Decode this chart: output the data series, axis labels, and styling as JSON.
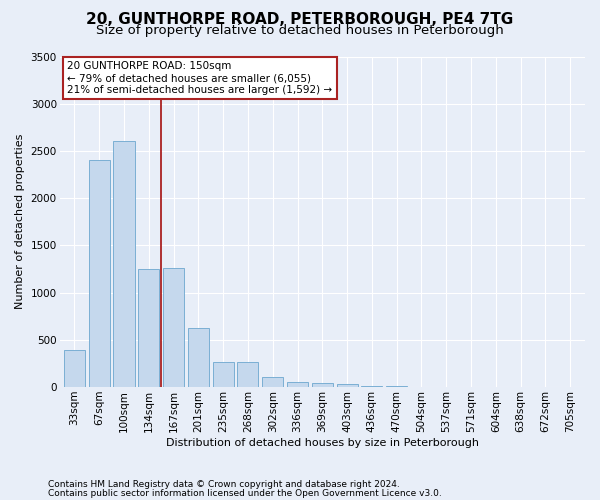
{
  "title": "20, GUNTHORPE ROAD, PETERBOROUGH, PE4 7TG",
  "subtitle": "Size of property relative to detached houses in Peterborough",
  "xlabel": "Distribution of detached houses by size in Peterborough",
  "ylabel": "Number of detached properties",
  "footer_line1": "Contains HM Land Registry data © Crown copyright and database right 2024.",
  "footer_line2": "Contains public sector information licensed under the Open Government Licence v3.0.",
  "categories": [
    "33sqm",
    "67sqm",
    "100sqm",
    "134sqm",
    "167sqm",
    "201sqm",
    "235sqm",
    "268sqm",
    "302sqm",
    "336sqm",
    "369sqm",
    "403sqm",
    "436sqm",
    "470sqm",
    "504sqm",
    "537sqm",
    "571sqm",
    "604sqm",
    "638sqm",
    "672sqm",
    "705sqm"
  ],
  "values": [
    390,
    2400,
    2600,
    1250,
    1260,
    630,
    270,
    270,
    110,
    55,
    40,
    30,
    15,
    10,
    5,
    3,
    2,
    1,
    0,
    0,
    0
  ],
  "bar_color": "#c5d8ed",
  "bar_edge_color": "#7bafd4",
  "vline_color": "#aa2222",
  "vline_pos": 3.5,
  "annotation_text": "20 GUNTHORPE ROAD: 150sqm\n← 79% of detached houses are smaller (6,055)\n21% of semi-detached houses are larger (1,592) →",
  "annotation_box_color": "white",
  "annotation_box_edge_color": "#aa2222",
  "ylim": [
    0,
    3500
  ],
  "yticks": [
    0,
    500,
    1000,
    1500,
    2000,
    2500,
    3000,
    3500
  ],
  "bg_color": "#e8eef8",
  "plot_bg_color": "#e8eef8",
  "title_fontsize": 11,
  "subtitle_fontsize": 9.5,
  "axis_label_fontsize": 8,
  "tick_fontsize": 7.5,
  "annotation_fontsize": 7.5,
  "footer_fontsize": 6.5
}
